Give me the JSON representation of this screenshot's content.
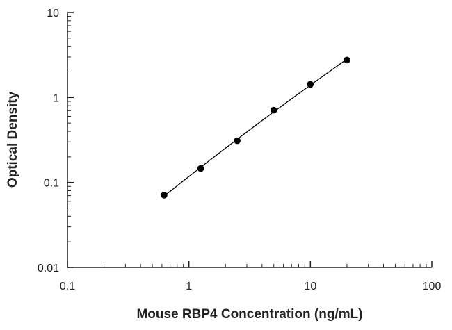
{
  "chart_data": {
    "type": "scatter",
    "title": "",
    "xlabel": "Mouse RBP4 Concentration (ng/mL)",
    "ylabel": "Optical Density",
    "xscale": "log",
    "yscale": "log",
    "xlim": [
      0.1,
      100
    ],
    "ylim": [
      0.01,
      10
    ],
    "x_ticks": [
      0.1,
      1,
      10,
      100
    ],
    "x_tick_labels": [
      "0.1",
      "1",
      "10",
      "100"
    ],
    "y_ticks": [
      0.01,
      0.1,
      1,
      10
    ],
    "y_tick_labels": [
      "0.01",
      "0.1",
      "1",
      "10"
    ],
    "grid": false,
    "legend": "none",
    "series": [
      {
        "x": [
          0.625,
          1.25,
          2.5,
          5,
          10,
          20
        ],
        "y": [
          0.071,
          0.146,
          0.31,
          0.71,
          1.43,
          2.76
        ]
      }
    ],
    "fit": "curve through points",
    "colors": {
      "axis": "#222222",
      "marker": "#000000",
      "line": "#000000"
    }
  }
}
